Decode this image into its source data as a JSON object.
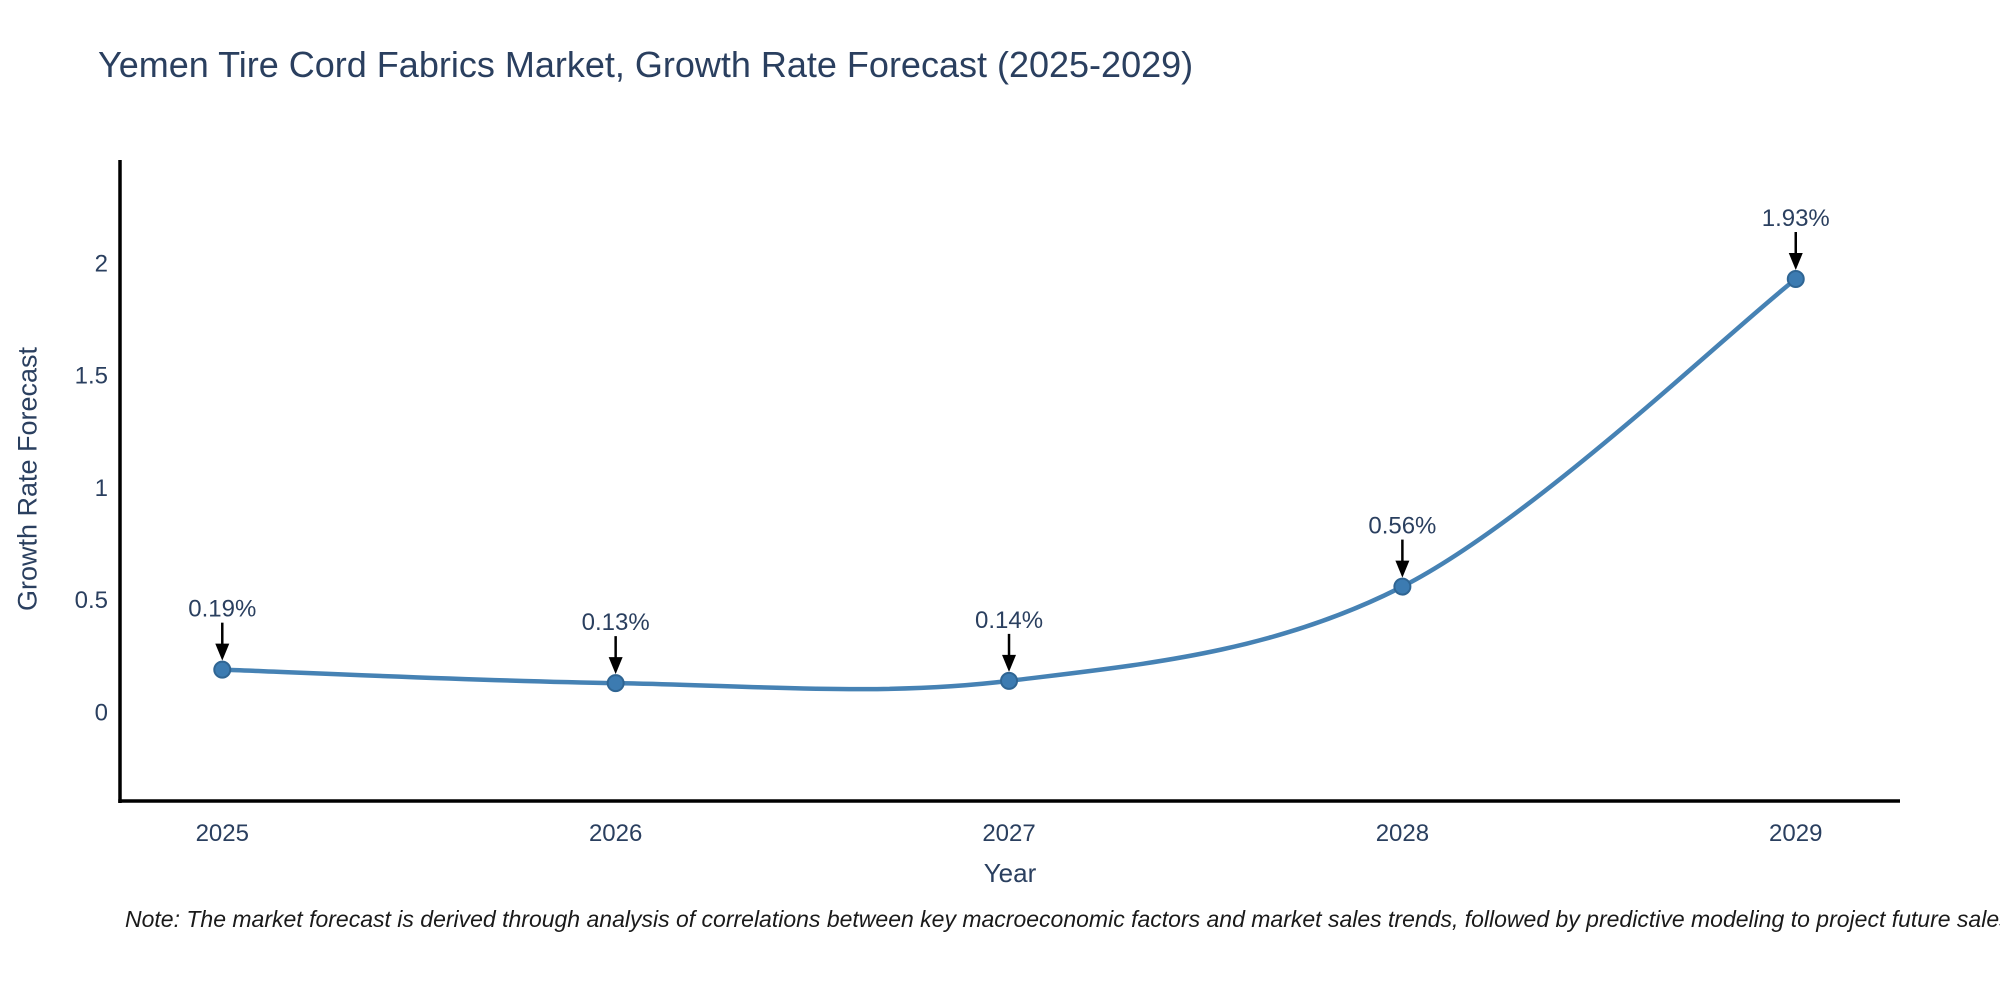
{
  "footer": {
    "note": "Note: The market forecast is derived through analysis of correlations between key macroeconomic factors and market sales trends, followed by predictive modeling to project future sales"
  },
  "chart_data": {
    "type": "line",
    "title": "Yemen Tire Cord Fabrics Market, Growth Rate Forecast (2025-2029)",
    "xlabel": "Year",
    "ylabel": "Growth Rate Forecast",
    "x": [
      2025,
      2026,
      2027,
      2028,
      2029
    ],
    "series": [
      {
        "name": "Growth Rate Forecast",
        "values": [
          0.19,
          0.13,
          0.14,
          0.56,
          1.93
        ]
      }
    ],
    "point_labels": [
      "0.19%",
      "0.13%",
      "0.14%",
      "0.56%",
      "1.93%"
    ],
    "xtick_labels": [
      "2025",
      "2026",
      "2027",
      "2028",
      "2029"
    ],
    "ytick_values": [
      0,
      0.5,
      1,
      1.5,
      2
    ],
    "ytick_labels": [
      "0",
      "0.5",
      "1",
      "1.5",
      "2"
    ],
    "xlim": [
      2024.74,
      2029.265
    ],
    "ylim": [
      -0.395,
      2.46
    ],
    "line_shape": "spline",
    "grid": false,
    "legend_position": "none",
    "colors": {
      "line": "#4682b4",
      "marker_fill": "#3c7bb1",
      "marker_edge": "#2f6593",
      "axis_line": "#000000",
      "tick_text": "#2a3f5f",
      "annotation_text": "#2a3f5f",
      "arrow": "#000000",
      "title_text": "#2a3f5f",
      "background": "#ffffff"
    }
  }
}
